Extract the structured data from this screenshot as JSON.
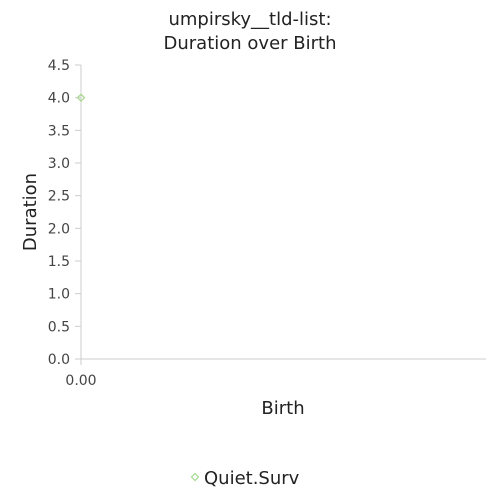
{
  "chart_data": {
    "type": "scatter",
    "title_line1": "umpirsky__tld-list:",
    "title_line2": "Duration over Birth",
    "xlabel": "Birth",
    "ylabel": "Duration",
    "ylim": [
      0,
      4.5
    ],
    "yticks": [
      "0.0",
      "0.5",
      "1.0",
      "1.5",
      "2.0",
      "2.5",
      "3.0",
      "3.5",
      "4.0",
      "4.5"
    ],
    "xticks": [
      "0.00"
    ],
    "grid": false,
    "legend_position": "bottom",
    "series": [
      {
        "name": "Quiet.Surv",
        "color": "#a6d98c",
        "marker": "diamond",
        "points": [
          {
            "x": 0.0,
            "y": 4.0
          }
        ]
      }
    ]
  }
}
